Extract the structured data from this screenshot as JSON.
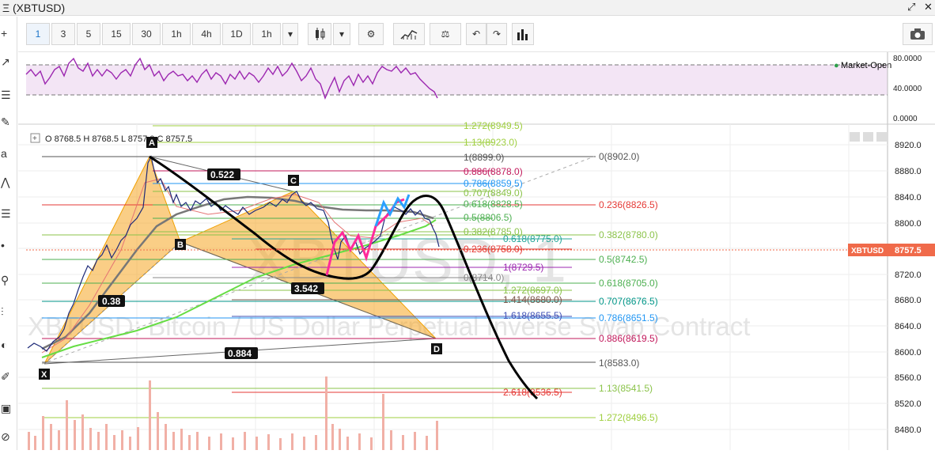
{
  "window": {
    "title": "(XBTUSD)",
    "menu_glyph": "Ξ"
  },
  "toolbar": {
    "intervals": [
      "1",
      "3",
      "5",
      "15",
      "30",
      "1h",
      "4h",
      "1D",
      "1h"
    ],
    "active_interval": "1",
    "icons": [
      "candles-icon",
      "chevron-down-icon",
      "gear-icon",
      "indicators-icon",
      "scale-icon",
      "undo-icon",
      "redo-icon",
      "bar-chart-icon",
      "camera-icon"
    ]
  },
  "rsi_panel": {
    "ticks": [
      "80.0000",
      "40.0000",
      "0.0000"
    ],
    "market_status": "Market-Open",
    "status_color": "#2e9e4a"
  },
  "ohlc": {
    "label": "O 8768.5  H 8768.5  L 8757.0  C 8757.5"
  },
  "price_axis": {
    "ticks": [
      "8920.0",
      "8880.0",
      "8840.0",
      "8800.0",
      "8760.0",
      "8720.0",
      "8680.0",
      "8640.0",
      "8600.0",
      "8560.0",
      "8520.0",
      "8480.0"
    ],
    "last_symbol": "XBTUSD",
    "last_price": "8757.5",
    "last_color": "#f06a4a"
  },
  "watermark": {
    "symbol": "XBTUSD, 1",
    "description": "XBTUSD: Bitcoin / US Dollar Perpetual Inverse Swap Contract"
  },
  "pattern_points": {
    "X": "X",
    "A": "A",
    "B": "B",
    "C": "C",
    "D": "D"
  },
  "ratios": {
    "xb": "0.38",
    "ac": "0.522",
    "bd": "3.542",
    "xd": "0.884"
  },
  "fib_labels": {
    "f1272_top": "1.272(8949.5)",
    "f113_top": "1.13(8923.0)",
    "f1_8899": "1(8899.0)",
    "f0_8902": "0(8902.0)",
    "f0886_8878": "0.886(8878.0)",
    "f0786_8859": "0.786(8859.5)",
    "f0707_8849": "0.707(8849.0)",
    "f0618_8828": "0.618(8828.5)",
    "f0236_8826": "0.236(8826.5)",
    "f05_8806": "0.5(8806.5)",
    "f0382_8785": "0.382(8785.0)",
    "f0382_8780": "0.382(8780.0)",
    "f0618_8775": "0.618(8775.0)",
    "f0236_8758": "0.236(8758.0)",
    "f05_8742": "0.5(8742.5)",
    "f1_8729": "1(8729.5)",
    "f0_8714": "0(8714.0)",
    "f0618_8705": "0.618(8705.0)",
    "f1272_8697": "1.272(8697.0)",
    "f1414_8680": "1.414(8680.0)",
    "f0707_8676": "0.707(8676.5)",
    "f1618_8655": "1.618(8655.5)",
    "f0786_8651": "0.786(8651.5)",
    "f0886_8619": "0.886(8619.5)",
    "f1_8583": "1(8583.0)",
    "f113_8541": "1.13(8541.5)",
    "f2618_8536": "2.618(8536.5)",
    "f1272_8496": "1.272(8496.5)"
  },
  "colors": {
    "rsi": "#9c27b0",
    "pattern_fill": "#f5a623",
    "ma_gray": "#777777",
    "ma_green": "#66dd44",
    "drawing_black": "#000000",
    "drawing_pink": "#ff2a9a",
    "drawing_blue": "#2aa0ff"
  }
}
